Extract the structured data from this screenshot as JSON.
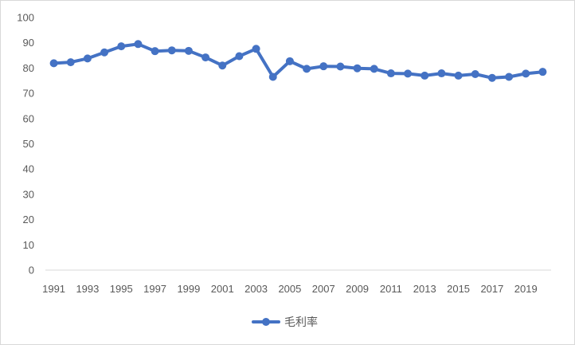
{
  "chart_data": {
    "type": "line",
    "title": "",
    "xlabel": "",
    "ylabel": "",
    "ylim": [
      0,
      100
    ],
    "y_ticks": [
      0,
      10,
      20,
      30,
      40,
      50,
      60,
      70,
      80,
      90,
      100
    ],
    "x": [
      1991,
      1992,
      1993,
      1994,
      1995,
      1996,
      1997,
      1998,
      1999,
      2000,
      2001,
      2002,
      2003,
      2004,
      2005,
      2006,
      2007,
      2008,
      2009,
      2010,
      2011,
      2012,
      2013,
      2014,
      2015,
      2016,
      2017,
      2018,
      2019,
      2020
    ],
    "x_tick_labels": [
      "1991",
      "1993",
      "1995",
      "1997",
      "1999",
      "2001",
      "2003",
      "2005",
      "2007",
      "2009",
      "2011",
      "2013",
      "2015",
      "2017",
      "2019"
    ],
    "series": [
      {
        "name": "毛利率",
        "color": "#4472c4",
        "values": [
          81.9,
          82.3,
          83.8,
          86.2,
          88.6,
          89.5,
          86.7,
          87.0,
          86.8,
          84.2,
          81.0,
          84.7,
          87.6,
          76.5,
          82.7,
          79.7,
          80.7,
          80.6,
          79.9,
          79.7,
          77.9,
          77.8,
          77.0,
          77.9,
          77.0,
          77.6,
          76.1,
          76.5,
          77.8,
          78.5
        ]
      }
    ],
    "grid": false,
    "legend_position": "bottom"
  }
}
